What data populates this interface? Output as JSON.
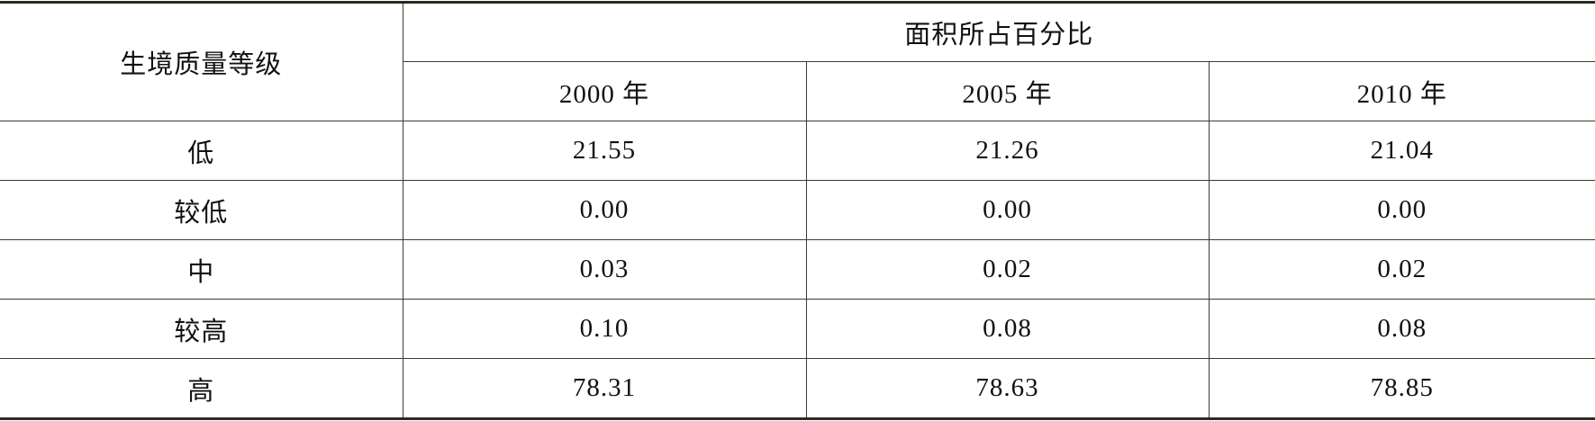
{
  "table": {
    "header": {
      "row_label": "生境质量等级",
      "group": "面积所占百分比",
      "columns": [
        "2000 年",
        "2005 年",
        "2010 年"
      ]
    },
    "rows": [
      [
        "低",
        "21.55",
        "21.26",
        "21.04"
      ],
      [
        "较低",
        "0.00",
        "0.00",
        "0.00"
      ],
      [
        "中",
        "0.03",
        "0.02",
        "0.02"
      ],
      [
        "较高",
        "0.10",
        "0.08",
        "0.08"
      ],
      [
        "高",
        "78.31",
        "78.63",
        "78.85"
      ]
    ]
  }
}
